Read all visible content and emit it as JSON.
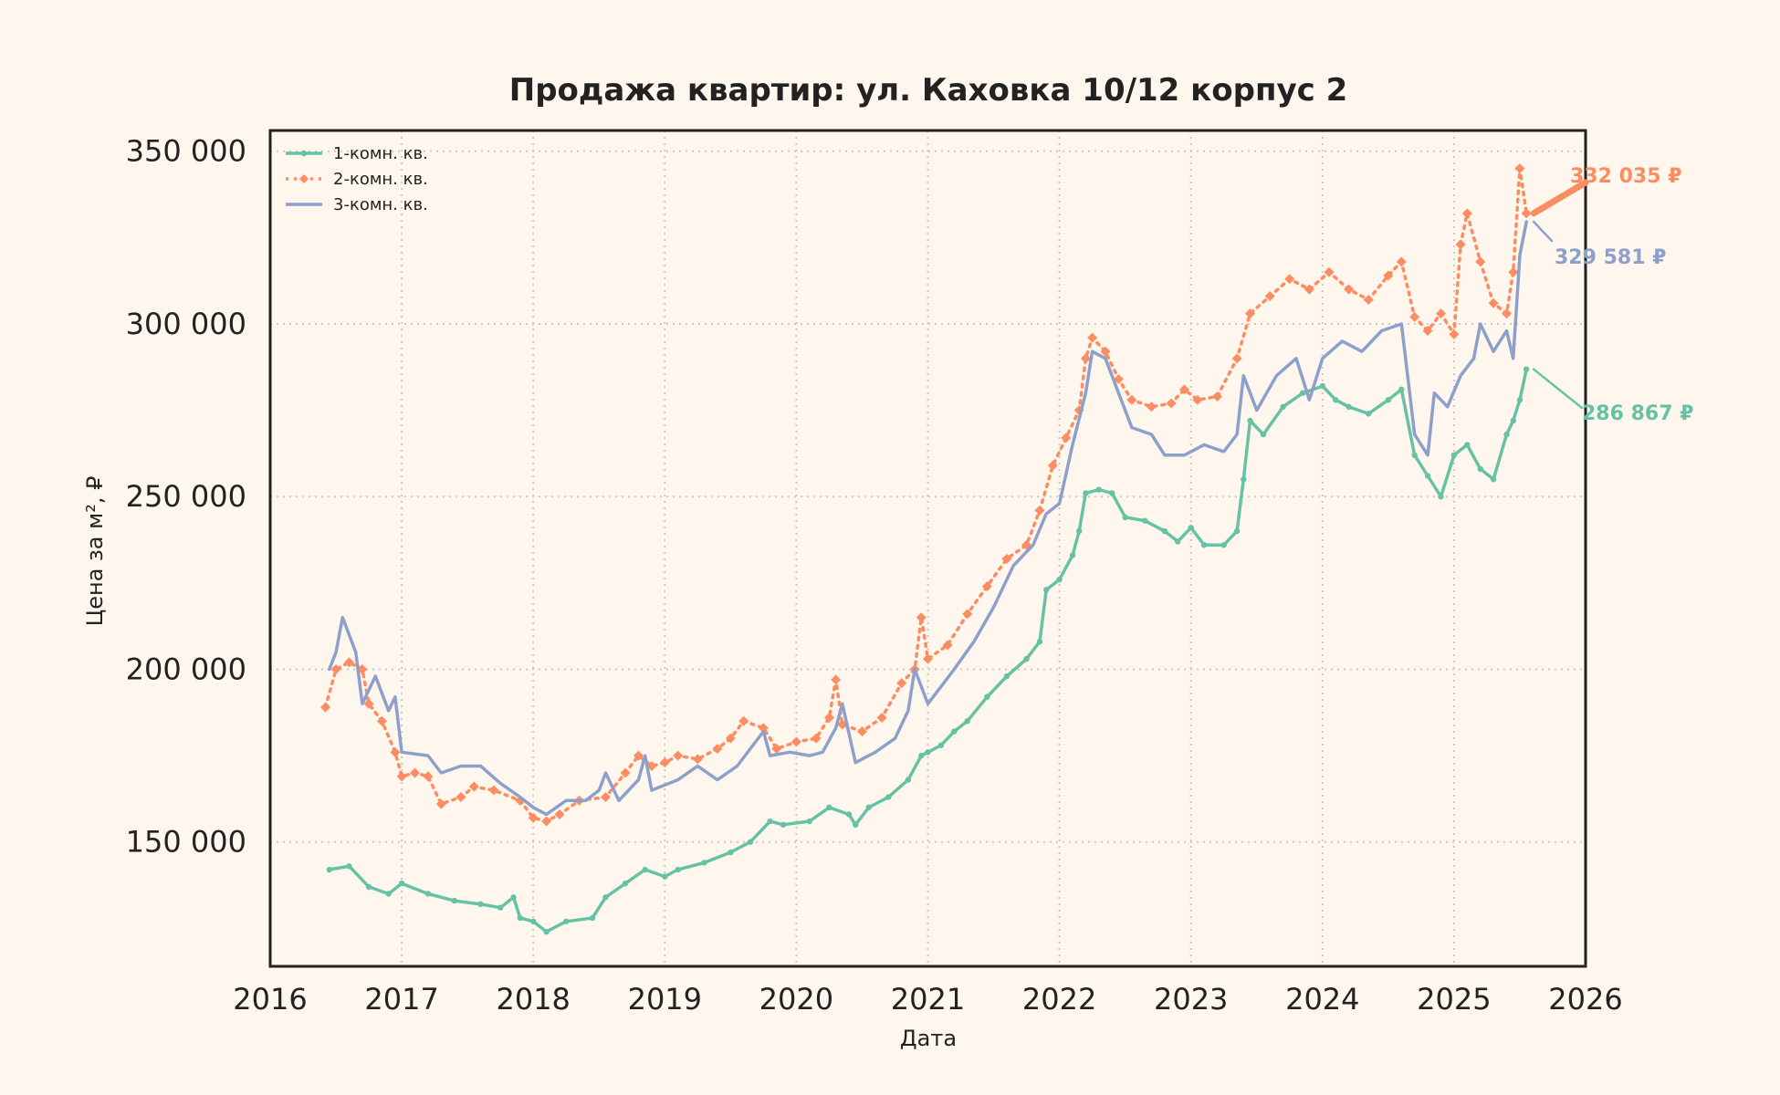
{
  "chart_data": {
    "type": "line",
    "title": "Продажа квартир: ул. Каховка 10/12 корпус 2",
    "xlabel": "Дата",
    "ylabel": "Цена за м², ₽",
    "xlim": [
      2016.0,
      2026.0
    ],
    "ylim": [
      114000,
      356000
    ],
    "x_ticks": [
      "2016",
      "2017",
      "2018",
      "2019",
      "2020",
      "2021",
      "2022",
      "2023",
      "2024",
      "2025",
      "2026"
    ],
    "y_ticks": [
      {
        "value": 150000,
        "label": "150 000"
      },
      {
        "value": 200000,
        "label": "200 000"
      },
      {
        "value": 250000,
        "label": "250 000"
      },
      {
        "value": 300000,
        "label": "300 000"
      },
      {
        "value": 350000,
        "label": "350 000"
      }
    ],
    "grid": true,
    "legend": "top-left",
    "series": [
      {
        "name": "1-комн. кв.",
        "color": "#66c2a5",
        "style": "solid-dots",
        "end_label": "286 867 ₽",
        "points": [
          [
            2016.45,
            142000
          ],
          [
            2016.6,
            143000
          ],
          [
            2016.75,
            137000
          ],
          [
            2016.9,
            135000
          ],
          [
            2017.0,
            138000
          ],
          [
            2017.2,
            135000
          ],
          [
            2017.4,
            133000
          ],
          [
            2017.6,
            132000
          ],
          [
            2017.75,
            131000
          ],
          [
            2017.85,
            134000
          ],
          [
            2017.9,
            128000
          ],
          [
            2018.0,
            127000
          ],
          [
            2018.1,
            124000
          ],
          [
            2018.25,
            127000
          ],
          [
            2018.45,
            128000
          ],
          [
            2018.55,
            134000
          ],
          [
            2018.7,
            138000
          ],
          [
            2018.85,
            142000
          ],
          [
            2019.0,
            140000
          ],
          [
            2019.1,
            142000
          ],
          [
            2019.3,
            144000
          ],
          [
            2019.5,
            147000
          ],
          [
            2019.65,
            150000
          ],
          [
            2019.8,
            156000
          ],
          [
            2019.9,
            155000
          ],
          [
            2020.1,
            156000
          ],
          [
            2020.25,
            160000
          ],
          [
            2020.4,
            158000
          ],
          [
            2020.45,
            155000
          ],
          [
            2020.55,
            160000
          ],
          [
            2020.7,
            163000
          ],
          [
            2020.85,
            168000
          ],
          [
            2020.95,
            175000
          ],
          [
            2021.0,
            176000
          ],
          [
            2021.1,
            178000
          ],
          [
            2021.2,
            182000
          ],
          [
            2021.3,
            185000
          ],
          [
            2021.45,
            192000
          ],
          [
            2021.6,
            198000
          ],
          [
            2021.75,
            203000
          ],
          [
            2021.85,
            208000
          ],
          [
            2021.9,
            223000
          ],
          [
            2022.0,
            226000
          ],
          [
            2022.1,
            233000
          ],
          [
            2022.15,
            240000
          ],
          [
            2022.2,
            251000
          ],
          [
            2022.3,
            252000
          ],
          [
            2022.4,
            251000
          ],
          [
            2022.5,
            244000
          ],
          [
            2022.65,
            243000
          ],
          [
            2022.8,
            240000
          ],
          [
            2022.9,
            237000
          ],
          [
            2023.0,
            241000
          ],
          [
            2023.1,
            236000
          ],
          [
            2023.25,
            236000
          ],
          [
            2023.35,
            240000
          ],
          [
            2023.4,
            255000
          ],
          [
            2023.45,
            272000
          ],
          [
            2023.55,
            268000
          ],
          [
            2023.7,
            276000
          ],
          [
            2023.85,
            280000
          ],
          [
            2024.0,
            282000
          ],
          [
            2024.1,
            278000
          ],
          [
            2024.2,
            276000
          ],
          [
            2024.35,
            274000
          ],
          [
            2024.5,
            278000
          ],
          [
            2024.6,
            281000
          ],
          [
            2024.7,
            262000
          ],
          [
            2024.8,
            256000
          ],
          [
            2024.9,
            250000
          ],
          [
            2025.0,
            262000
          ],
          [
            2025.1,
            265000
          ],
          [
            2025.2,
            258000
          ],
          [
            2025.3,
            255000
          ],
          [
            2025.4,
            268000
          ],
          [
            2025.45,
            272000
          ],
          [
            2025.5,
            278000
          ],
          [
            2025.55,
            286867
          ]
        ]
      },
      {
        "name": "2-комн. кв.",
        "color": "#fc8d62",
        "style": "dotted-diamonds",
        "end_label": "332 035 ₽",
        "points": [
          [
            2016.42,
            189000
          ],
          [
            2016.5,
            200000
          ],
          [
            2016.6,
            202000
          ],
          [
            2016.7,
            200000
          ],
          [
            2016.75,
            190000
          ],
          [
            2016.85,
            185000
          ],
          [
            2016.95,
            176000
          ],
          [
            2017.0,
            169000
          ],
          [
            2017.1,
            170000
          ],
          [
            2017.2,
            169000
          ],
          [
            2017.3,
            161000
          ],
          [
            2017.45,
            163000
          ],
          [
            2017.55,
            166000
          ],
          [
            2017.7,
            165000
          ],
          [
            2017.9,
            162000
          ],
          [
            2018.0,
            157000
          ],
          [
            2018.1,
            156000
          ],
          [
            2018.2,
            158000
          ],
          [
            2018.35,
            162000
          ],
          [
            2018.55,
            163000
          ],
          [
            2018.7,
            170000
          ],
          [
            2018.8,
            175000
          ],
          [
            2018.9,
            172000
          ],
          [
            2019.0,
            173000
          ],
          [
            2019.1,
            175000
          ],
          [
            2019.25,
            174000
          ],
          [
            2019.4,
            177000
          ],
          [
            2019.5,
            180000
          ],
          [
            2019.6,
            185000
          ],
          [
            2019.75,
            183000
          ],
          [
            2019.85,
            177000
          ],
          [
            2020.0,
            179000
          ],
          [
            2020.15,
            180000
          ],
          [
            2020.25,
            186000
          ],
          [
            2020.3,
            197000
          ],
          [
            2020.35,
            184000
          ],
          [
            2020.5,
            182000
          ],
          [
            2020.65,
            186000
          ],
          [
            2020.8,
            196000
          ],
          [
            2020.9,
            200000
          ],
          [
            2020.95,
            215000
          ],
          [
            2021.0,
            203000
          ],
          [
            2021.15,
            207000
          ],
          [
            2021.3,
            216000
          ],
          [
            2021.45,
            224000
          ],
          [
            2021.6,
            232000
          ],
          [
            2021.75,
            236000
          ],
          [
            2021.85,
            246000
          ],
          [
            2021.95,
            259000
          ],
          [
            2022.05,
            267000
          ],
          [
            2022.15,
            275000
          ],
          [
            2022.2,
            290000
          ],
          [
            2022.25,
            296000
          ],
          [
            2022.35,
            292000
          ],
          [
            2022.45,
            284000
          ],
          [
            2022.55,
            278000
          ],
          [
            2022.7,
            276000
          ],
          [
            2022.85,
            277000
          ],
          [
            2022.95,
            281000
          ],
          [
            2023.05,
            278000
          ],
          [
            2023.2,
            279000
          ],
          [
            2023.35,
            290000
          ],
          [
            2023.45,
            303000
          ],
          [
            2023.6,
            308000
          ],
          [
            2023.75,
            313000
          ],
          [
            2023.9,
            310000
          ],
          [
            2024.05,
            315000
          ],
          [
            2024.2,
            310000
          ],
          [
            2024.35,
            307000
          ],
          [
            2024.5,
            314000
          ],
          [
            2024.6,
            318000
          ],
          [
            2024.7,
            302000
          ],
          [
            2024.8,
            298000
          ],
          [
            2024.9,
            303000
          ],
          [
            2025.0,
            297000
          ],
          [
            2025.05,
            323000
          ],
          [
            2025.1,
            332000
          ],
          [
            2025.2,
            318000
          ],
          [
            2025.3,
            306000
          ],
          [
            2025.4,
            303000
          ],
          [
            2025.45,
            315000
          ],
          [
            2025.5,
            345000
          ],
          [
            2025.55,
            332035
          ]
        ]
      },
      {
        "name": "3-комн. кв.",
        "color": "#8da0cb",
        "style": "solid",
        "end_label": "329 581 ₽",
        "points": [
          [
            2016.45,
            200000
          ],
          [
            2016.5,
            205000
          ],
          [
            2016.55,
            215000
          ],
          [
            2016.65,
            205000
          ],
          [
            2016.7,
            190000
          ],
          [
            2016.8,
            198000
          ],
          [
            2016.9,
            188000
          ],
          [
            2016.95,
            192000
          ],
          [
            2017.0,
            176000
          ],
          [
            2017.2,
            175000
          ],
          [
            2017.3,
            170000
          ],
          [
            2017.45,
            172000
          ],
          [
            2017.6,
            172000
          ],
          [
            2017.75,
            167000
          ],
          [
            2017.9,
            163000
          ],
          [
            2018.0,
            160000
          ],
          [
            2018.1,
            158000
          ],
          [
            2018.25,
            162000
          ],
          [
            2018.4,
            162000
          ],
          [
            2018.5,
            165000
          ],
          [
            2018.55,
            170000
          ],
          [
            2018.65,
            162000
          ],
          [
            2018.8,
            168000
          ],
          [
            2018.85,
            175000
          ],
          [
            2018.9,
            165000
          ],
          [
            2019.1,
            168000
          ],
          [
            2019.25,
            172000
          ],
          [
            2019.4,
            168000
          ],
          [
            2019.55,
            172000
          ],
          [
            2019.65,
            177000
          ],
          [
            2019.75,
            182000
          ],
          [
            2019.8,
            175000
          ],
          [
            2019.95,
            176000
          ],
          [
            2020.1,
            175000
          ],
          [
            2020.2,
            176000
          ],
          [
            2020.3,
            183000
          ],
          [
            2020.35,
            190000
          ],
          [
            2020.45,
            173000
          ],
          [
            2020.6,
            176000
          ],
          [
            2020.75,
            180000
          ],
          [
            2020.85,
            188000
          ],
          [
            2020.9,
            200000
          ],
          [
            2021.0,
            190000
          ],
          [
            2021.1,
            195000
          ],
          [
            2021.2,
            200000
          ],
          [
            2021.35,
            208000
          ],
          [
            2021.5,
            218000
          ],
          [
            2021.65,
            230000
          ],
          [
            2021.8,
            236000
          ],
          [
            2021.9,
            245000
          ],
          [
            2022.0,
            248000
          ],
          [
            2022.1,
            265000
          ],
          [
            2022.2,
            280000
          ],
          [
            2022.25,
            292000
          ],
          [
            2022.35,
            290000
          ],
          [
            2022.45,
            280000
          ],
          [
            2022.55,
            270000
          ],
          [
            2022.7,
            268000
          ],
          [
            2022.8,
            262000
          ],
          [
            2022.95,
            262000
          ],
          [
            2023.1,
            265000
          ],
          [
            2023.25,
            263000
          ],
          [
            2023.35,
            268000
          ],
          [
            2023.4,
            285000
          ],
          [
            2023.5,
            275000
          ],
          [
            2023.65,
            285000
          ],
          [
            2023.8,
            290000
          ],
          [
            2023.9,
            278000
          ],
          [
            2024.0,
            290000
          ],
          [
            2024.15,
            295000
          ],
          [
            2024.3,
            292000
          ],
          [
            2024.45,
            298000
          ],
          [
            2024.6,
            300000
          ],
          [
            2024.7,
            268000
          ],
          [
            2024.8,
            262000
          ],
          [
            2024.85,
            280000
          ],
          [
            2024.95,
            276000
          ],
          [
            2025.05,
            285000
          ],
          [
            2025.15,
            290000
          ],
          [
            2025.2,
            300000
          ],
          [
            2025.3,
            292000
          ],
          [
            2025.4,
            298000
          ],
          [
            2025.45,
            290000
          ],
          [
            2025.5,
            320000
          ],
          [
            2025.55,
            329581
          ]
        ]
      }
    ]
  }
}
